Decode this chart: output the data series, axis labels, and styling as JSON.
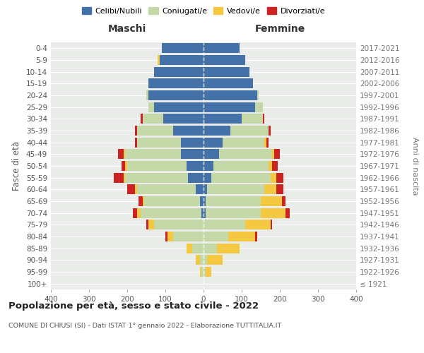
{
  "age_groups": [
    "100+",
    "95-99",
    "90-94",
    "85-89",
    "80-84",
    "75-79",
    "70-74",
    "65-69",
    "60-64",
    "55-59",
    "50-54",
    "45-49",
    "40-44",
    "35-39",
    "30-34",
    "25-29",
    "20-24",
    "15-19",
    "10-14",
    "5-9",
    "0-4"
  ],
  "birth_years": [
    "≤ 1921",
    "1922-1926",
    "1927-1931",
    "1932-1936",
    "1937-1941",
    "1942-1946",
    "1947-1951",
    "1952-1956",
    "1957-1961",
    "1962-1966",
    "1967-1971",
    "1972-1976",
    "1977-1981",
    "1982-1986",
    "1987-1991",
    "1992-1996",
    "1997-2001",
    "2002-2006",
    "2007-2011",
    "2012-2016",
    "2017-2021"
  ],
  "males": {
    "celibi": [
      0,
      0,
      0,
      0,
      0,
      0,
      5,
      10,
      20,
      40,
      45,
      60,
      60,
      80,
      105,
      130,
      145,
      145,
      130,
      115,
      110
    ],
    "coniugati": [
      0,
      5,
      10,
      30,
      80,
      130,
      160,
      145,
      155,
      165,
      155,
      145,
      115,
      95,
      55,
      15,
      5,
      0,
      0,
      0,
      0
    ],
    "vedovi": [
      0,
      5,
      10,
      15,
      15,
      15,
      10,
      5,
      5,
      5,
      5,
      5,
      0,
      0,
      0,
      0,
      0,
      0,
      0,
      5,
      0
    ],
    "divorziati": [
      0,
      0,
      0,
      0,
      5,
      5,
      10,
      10,
      20,
      25,
      10,
      15,
      5,
      5,
      5,
      0,
      0,
      0,
      0,
      0,
      0
    ]
  },
  "females": {
    "nubili": [
      0,
      0,
      0,
      0,
      0,
      0,
      5,
      5,
      10,
      20,
      25,
      40,
      50,
      70,
      100,
      135,
      140,
      130,
      120,
      110,
      95
    ],
    "coniugate": [
      0,
      5,
      10,
      35,
      65,
      110,
      145,
      145,
      150,
      155,
      145,
      140,
      110,
      100,
      55,
      20,
      5,
      0,
      0,
      0,
      0
    ],
    "vedove": [
      0,
      15,
      40,
      60,
      70,
      65,
      65,
      55,
      30,
      15,
      10,
      5,
      5,
      0,
      0,
      0,
      0,
      0,
      0,
      0,
      0
    ],
    "divorziate": [
      0,
      0,
      0,
      0,
      5,
      5,
      10,
      10,
      20,
      20,
      15,
      15,
      5,
      5,
      5,
      0,
      0,
      0,
      0,
      0,
      0
    ]
  },
  "colors": {
    "celibi": "#4472a8",
    "coniugati": "#c5d9a8",
    "vedovi": "#f5c842",
    "divorziati": "#cc2222"
  },
  "xlim": 400,
  "title": "Popolazione per età, sesso e stato civile - 2022",
  "subtitle": "COMUNE DI CHIUSI (SI) - Dati ISTAT 1° gennaio 2022 - Elaborazione TUTTITALIA.IT",
  "xlabel_left": "Maschi",
  "xlabel_right": "Femmine",
  "ylabel_left": "Fasce di età",
  "ylabel_right": "Anni di nascita",
  "legend_labels": [
    "Celibi/Nubili",
    "Coniugati/e",
    "Vedovi/e",
    "Divorziati/e"
  ],
  "bar_height": 0.85
}
